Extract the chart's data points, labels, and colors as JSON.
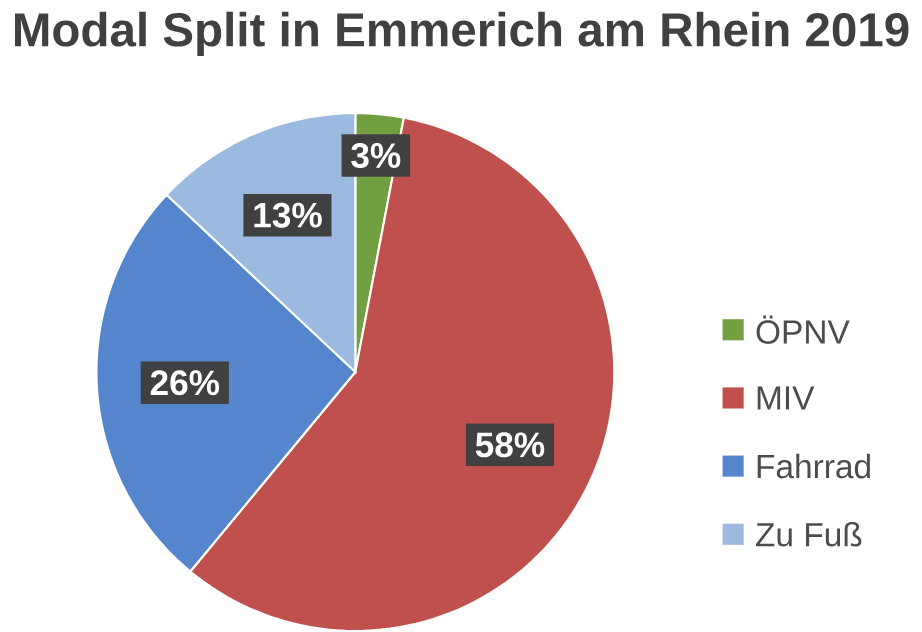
{
  "chart_data": {
    "type": "pie",
    "title": "Modal Split in Emmerich am Rhein 2019",
    "categories": [
      "ÖPNV",
      "MIV",
      "Fahrrad",
      "Zu Fuß"
    ],
    "values": [
      3,
      58,
      26,
      13
    ],
    "value_labels": [
      "3%",
      "58%",
      "26%",
      "13%"
    ],
    "colors": [
      "#72a040",
      "#c0504d",
      "#5585cc",
      "#9cb9df"
    ],
    "legend": "right"
  }
}
